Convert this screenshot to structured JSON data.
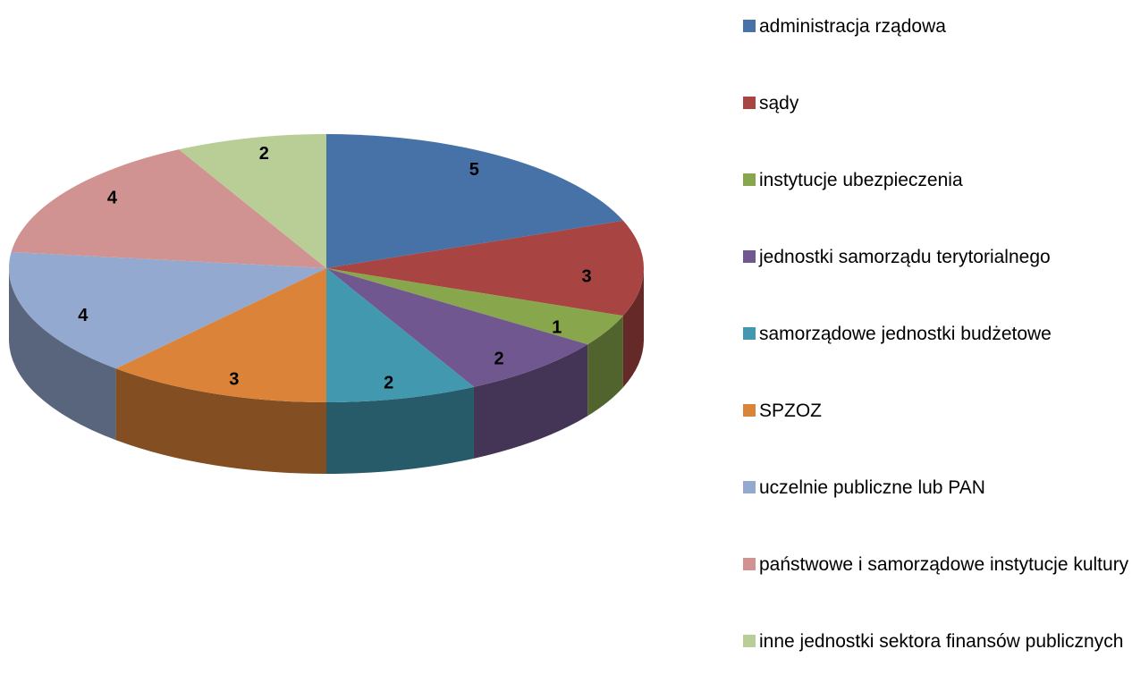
{
  "chart_data": {
    "type": "pie",
    "categories": [
      "administracja rządowa",
      "sądy",
      "instytucje ubezpieczenia",
      "jednostki samorządu terytorialnego",
      "samorządowe jednostki budżetowe",
      "SPZOZ",
      "uczelnie publiczne lub PAN",
      "państwowe i samorządowe instytucje kultury",
      "inne jednostki sektora finansów publicznych"
    ],
    "values": [
      5,
      3,
      1,
      2,
      2,
      3,
      4,
      4,
      2
    ],
    "colors": [
      "#4672a8",
      "#a84441",
      "#88a64c",
      "#71578f",
      "#4198af",
      "#db8439",
      "#93a9cf",
      "#d09392",
      "#b9cd96"
    ],
    "legend": "right"
  }
}
